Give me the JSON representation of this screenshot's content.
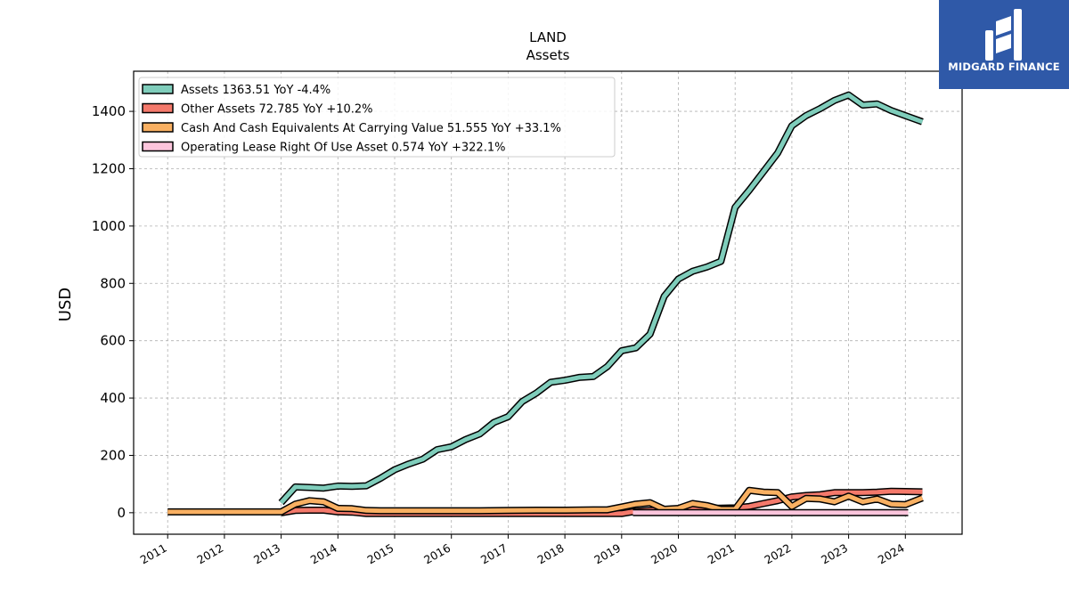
{
  "header": {
    "ticker": "LAND",
    "subtitle": "Assets"
  },
  "brand": {
    "name": "MIDGARD FINANCE",
    "color": "#2f59a8"
  },
  "chart_data": {
    "type": "line",
    "title": "LAND",
    "subtitle": "Assets",
    "xlabel": "",
    "ylabel": "USD",
    "xlim": [
      2010.4,
      2025.0
    ],
    "ylim": [
      -75,
      1540
    ],
    "xticks": [
      2011,
      2012,
      2013,
      2014,
      2015,
      2016,
      2017,
      2018,
      2019,
      2020,
      2021,
      2022,
      2023,
      2024
    ],
    "yticks": [
      0,
      200,
      400,
      600,
      800,
      1000,
      1200,
      1400
    ],
    "grid": true,
    "legend_position": "top-left",
    "series": [
      {
        "name": "Assets",
        "legend": "Assets  1363.51 YoY -4.4%",
        "color": "#7fcdbb",
        "x": [
          2013.0,
          2013.25,
          2013.5,
          2013.75,
          2014.0,
          2014.25,
          2014.5,
          2014.75,
          2015.0,
          2015.25,
          2015.5,
          2015.75,
          2016.0,
          2016.25,
          2016.5,
          2016.75,
          2017.0,
          2017.25,
          2017.5,
          2017.75,
          2018.0,
          2018.25,
          2018.5,
          2018.75,
          2019.0,
          2019.25,
          2019.5,
          2019.75,
          2020.0,
          2020.25,
          2020.5,
          2020.75,
          2021.0,
          2021.25,
          2021.5,
          2021.75,
          2022.0,
          2022.25,
          2022.5,
          2022.75,
          2023.0,
          2023.25,
          2023.5,
          2023.75,
          2024.0,
          2024.3
        ],
        "y": [
          35,
          90,
          88,
          86,
          93,
          92,
          94,
          120,
          150,
          170,
          187,
          220,
          230,
          255,
          275,
          315,
          335,
          388,
          418,
          455,
          462,
          472,
          475,
          510,
          565,
          575,
          623,
          755,
          815,
          842,
          857,
          877,
          1065,
          1125,
          1190,
          1255,
          1350,
          1385,
          1410,
          1438,
          1457,
          1422,
          1426,
          1403,
          1385,
          1363.51
        ]
      },
      {
        "name": "Other Assets",
        "legend": "Other Assets  72.785 YoY +10.2%",
        "color": "#f4796b",
        "x": [
          2013.0,
          2013.25,
          2013.5,
          2013.75,
          2014.0,
          2014.25,
          2014.5,
          2014.75,
          2015.0,
          2015.5,
          2016.0,
          2016.5,
          2017.0,
          2017.5,
          2018.0,
          2018.5,
          2018.75,
          2019.0,
          2019.25,
          2019.5,
          2019.75,
          2020.0,
          2020.25,
          2020.5,
          2020.75,
          2021.0,
          2021.25,
          2021.5,
          2021.75,
          2022.0,
          2022.25,
          2022.5,
          2022.75,
          2023.0,
          2023.25,
          2023.5,
          2023.75,
          2024.0,
          2024.3
        ],
        "y": [
          0,
          8,
          9,
          9,
          3,
          2,
          -3,
          -3,
          -3,
          -3,
          -3,
          -3,
          -3,
          -3,
          -3,
          -3,
          -3,
          -3,
          5,
          8,
          10,
          12,
          14,
          15,
          16,
          17,
          22,
          32,
          42,
          55,
          60,
          63,
          70,
          70,
          70,
          72,
          75,
          74,
          72.785
        ]
      },
      {
        "name": "Cash And Cash Equivalents At Carrying Value",
        "legend": "Cash And Cash Equivalents At Carrying Value  51.555 YoY +33.1%",
        "color": "#f9b062",
        "x": [
          2011.0,
          2011.5,
          2012.0,
          2012.5,
          2013.0,
          2013.25,
          2013.5,
          2013.75,
          2014.0,
          2014.25,
          2014.5,
          2014.75,
          2015.0,
          2015.5,
          2016.0,
          2016.5,
          2017.0,
          2017.5,
          2018.0,
          2018.5,
          2018.75,
          2019.0,
          2019.25,
          2019.5,
          2019.75,
          2020.0,
          2020.25,
          2020.5,
          2020.75,
          2021.0,
          2021.25,
          2021.5,
          2021.75,
          2022.0,
          2022.25,
          2022.5,
          2022.75,
          2023.0,
          2023.25,
          2023.5,
          2023.75,
          2024.0,
          2024.3
        ],
        "y": [
          3,
          3,
          3,
          3,
          3,
          30,
          42,
          38,
          15,
          14,
          8,
          7,
          7,
          7,
          7,
          7,
          8,
          9,
          9,
          10,
          10,
          20,
          30,
          35,
          12,
          15,
          32,
          25,
          12,
          12,
          78,
          72,
          70,
          22,
          50,
          48,
          38,
          58,
          38,
          48,
          30,
          28,
          51.555
        ]
      },
      {
        "name": "Operating Lease Right Of Use Asset",
        "legend": "Operating Lease Right Of Use Asset  0.574 YoY +322.1%",
        "color": "#fcc5dc",
        "x": [
          2019.2,
          2024.05
        ],
        "y": [
          0.5,
          0.574
        ]
      }
    ]
  }
}
